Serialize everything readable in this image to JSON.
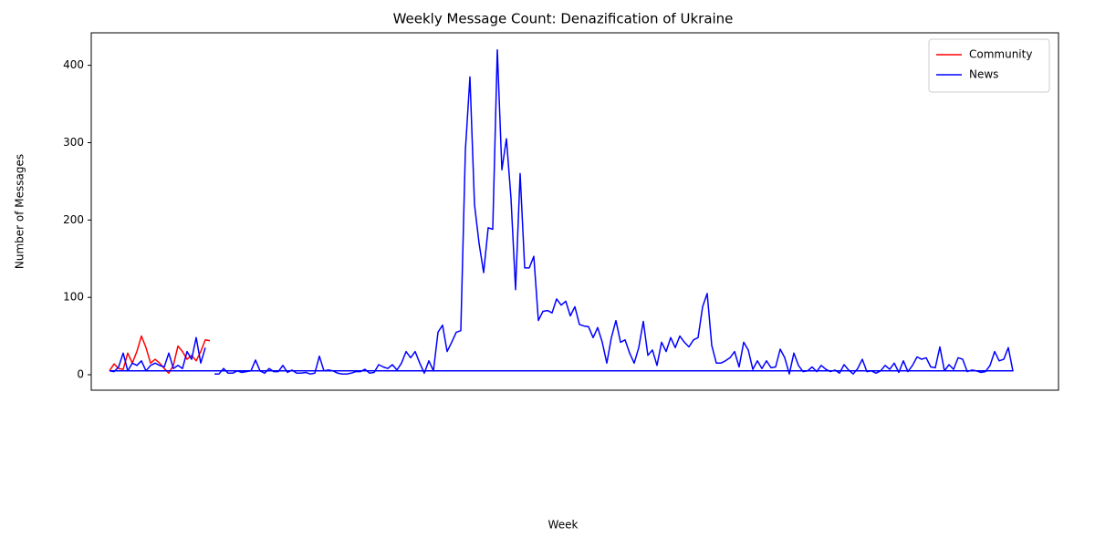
{
  "chart_data": {
    "type": "line",
    "title": "Weekly Message Count: Denazification of Ukraine",
    "x_label": "Week",
    "y_label": "Number of Messages",
    "xlim": [
      -4,
      208
    ],
    "ylim": [
      -20,
      442
    ],
    "yticks": [
      0,
      100,
      200,
      300,
      400
    ],
    "legend": "upper right",
    "series": [
      {
        "name": "Community",
        "color": "#ff0000",
        "x": [
          0,
          1,
          2,
          3,
          4,
          5,
          6,
          7,
          8,
          9,
          10,
          11,
          12,
          13,
          14,
          15,
          16,
          17,
          18,
          19,
          20,
          21,
          22
        ],
        "values": [
          5,
          14,
          8,
          7,
          28,
          15,
          30,
          50,
          35,
          15,
          20,
          15,
          8,
          2,
          12,
          37,
          30,
          20,
          25,
          18,
          30,
          45,
          44
        ]
      },
      {
        "name": "News",
        "color": "#0000ff",
        "x": [
          0,
          1,
          2,
          3,
          4,
          5,
          6,
          7,
          8,
          9,
          10,
          11,
          12,
          13,
          14,
          15,
          16,
          17,
          18,
          19,
          20,
          21,
          22,
          23,
          24,
          25,
          26,
          27,
          28,
          29,
          30,
          31,
          32,
          33,
          34,
          35,
          36,
          37,
          38,
          39,
          40,
          41,
          42,
          43,
          44,
          45,
          46,
          47,
          48,
          49,
          50,
          51,
          52,
          53,
          54,
          55,
          56,
          57,
          58,
          59,
          60,
          61,
          62,
          63,
          64,
          65,
          66,
          67,
          68,
          69,
          70,
          71,
          72,
          73,
          74,
          75,
          76,
          77,
          78,
          79,
          80,
          81,
          82,
          83,
          84,
          85,
          86,
          87,
          88,
          89,
          90,
          91,
          92,
          93,
          94,
          95,
          96,
          97,
          98,
          99,
          100,
          101,
          102,
          103,
          104,
          105,
          106,
          107,
          108,
          109,
          110,
          111,
          112,
          113,
          114,
          115,
          116,
          117,
          118,
          119,
          120,
          121,
          122,
          123,
          124,
          125,
          126,
          127,
          128,
          129,
          130,
          131,
          132,
          133,
          134,
          135,
          136,
          137,
          138,
          139,
          140,
          141,
          142,
          143,
          144,
          145,
          146,
          147,
          148,
          149,
          150,
          151,
          152,
          153,
          154,
          155,
          156,
          157,
          158,
          159,
          160,
          161,
          162,
          163,
          164,
          165,
          166,
          167,
          168,
          169,
          170,
          171,
          172,
          173,
          174,
          175,
          176,
          177,
          178,
          179,
          180,
          181,
          182,
          183,
          184,
          185,
          186,
          187,
          188,
          189,
          190,
          191,
          192,
          193,
          194,
          195,
          196,
          197,
          198,
          0
        ],
        "values": [
          5,
          4,
          10,
          28,
          5,
          15,
          12,
          18,
          5,
          12,
          15,
          12,
          10,
          28,
          8,
          12,
          8,
          30,
          20,
          48,
          15,
          35,
          null,
          1,
          1,
          8,
          2,
          2,
          5,
          3,
          4,
          5,
          19,
          5,
          2,
          8,
          4,
          4,
          12,
          3,
          6,
          2,
          2,
          3,
          1,
          2,
          24,
          5,
          6,
          5,
          2,
          1,
          1,
          2,
          4,
          4,
          7,
          2,
          3,
          13,
          10,
          8,
          13,
          6,
          15,
          30,
          22,
          30,
          15,
          2,
          18,
          5,
          55,
          64,
          30,
          42,
          55,
          57,
          290,
          385,
          220,
          170,
          132,
          190,
          188,
          420,
          265,
          305,
          228,
          110,
          260,
          138,
          138,
          153,
          70,
          82,
          83,
          80,
          98,
          90,
          95,
          76,
          88,
          65,
          63,
          62,
          48,
          61,
          42,
          15,
          48,
          70,
          42,
          45,
          28,
          15,
          35,
          69,
          25,
          32,
          12,
          42,
          30,
          48,
          35,
          50,
          42,
          36,
          45,
          48,
          88,
          105,
          38,
          15,
          15,
          18,
          22,
          30,
          10,
          42,
          32,
          7,
          18,
          8,
          18,
          9,
          10,
          33,
          22,
          1,
          28,
          12,
          4,
          5,
          10,
          4,
          12,
          7,
          4,
          6,
          2,
          13,
          6,
          1,
          8,
          20,
          4,
          5,
          2,
          5,
          12,
          7,
          15,
          3,
          18,
          4,
          12,
          23,
          20,
          22,
          10,
          9,
          36,
          5,
          13,
          7,
          22,
          20,
          4,
          6,
          5,
          3,
          4,
          12,
          30,
          18,
          20,
          35,
          5,
          5
        ]
      }
    ]
  }
}
